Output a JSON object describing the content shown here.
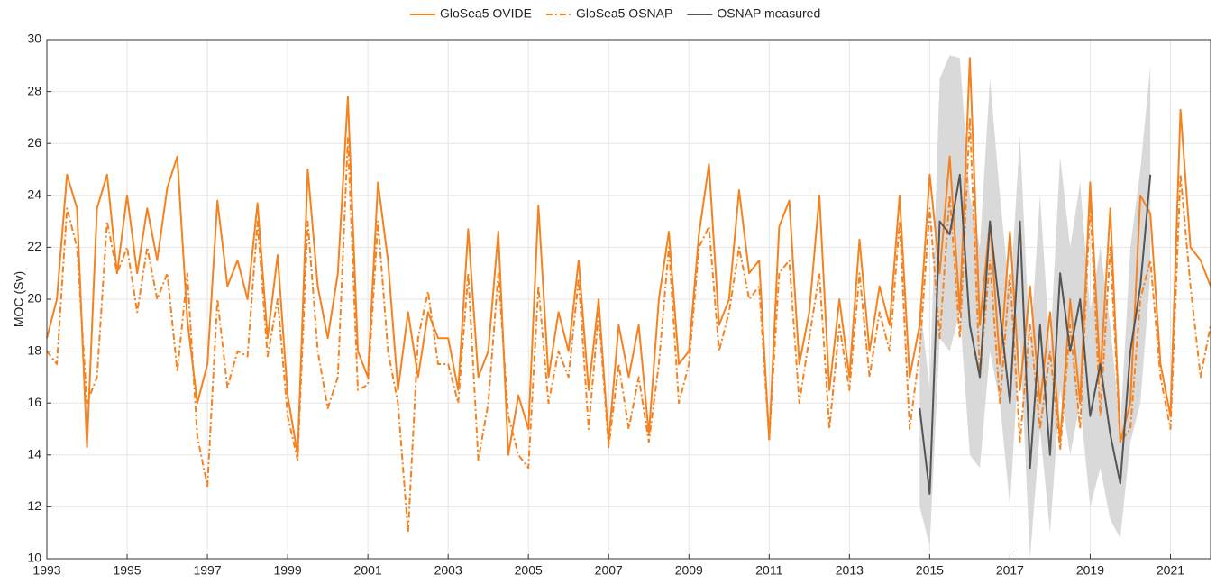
{
  "chart_data": {
    "type": "line",
    "y_label": "MOC (Sv)",
    "xlim": [
      1993,
      2022
    ],
    "xticks": [
      1993,
      1995,
      1997,
      1999,
      2001,
      2003,
      2005,
      2007,
      2009,
      2011,
      2013,
      2015,
      2017,
      2019,
      2021
    ],
    "ylim": [
      10,
      30
    ],
    "yticks": [
      10,
      12,
      14,
      16,
      18,
      20,
      22,
      24,
      26,
      28,
      30
    ],
    "grid": true,
    "legend": "top",
    "x": [
      1993,
      1993.25,
      1993.5,
      1993.75,
      1994,
      1994.25,
      1994.5,
      1994.75,
      1995,
      1995.25,
      1995.5,
      1995.75,
      1996,
      1996.25,
      1996.5,
      1996.75,
      1997,
      1997.25,
      1997.5,
      1997.75,
      1998,
      1998.25,
      1998.5,
      1998.75,
      1999,
      1999.25,
      1999.5,
      1999.75,
      2000,
      2000.25,
      2000.5,
      2000.75,
      2001,
      2001.25,
      2001.5,
      2001.75,
      2002,
      2002.25,
      2002.5,
      2002.75,
      2003,
      2003.25,
      2003.5,
      2003.75,
      2004,
      2004.25,
      2004.5,
      2004.75,
      2005,
      2005.25,
      2005.5,
      2005.75,
      2006,
      2006.25,
      2006.5,
      2006.75,
      2007,
      2007.25,
      2007.5,
      2007.75,
      2008,
      2008.25,
      2008.5,
      2008.75,
      2009,
      2009.25,
      2009.5,
      2009.75,
      2010,
      2010.25,
      2010.5,
      2010.75,
      2011,
      2011.25,
      2011.5,
      2011.75,
      2012,
      2012.25,
      2012.5,
      2012.75,
      2013,
      2013.25,
      2013.5,
      2013.75,
      2014,
      2014.25,
      2014.5,
      2014.75,
      2015,
      2015.25,
      2015.5,
      2015.75,
      2016,
      2016.25,
      2016.5,
      2016.75,
      2017,
      2017.25,
      2017.5,
      2017.75,
      2018,
      2018.25,
      2018.5,
      2018.75,
      2019,
      2019.25,
      2019.5,
      2019.75,
      2020,
      2020.25,
      2020.5,
      2020.75,
      2021,
      2021.25,
      2021.5,
      2021.75,
      2022
    ],
    "series": [
      {
        "name": "GloSea5 OVIDE",
        "color": "#f5821f",
        "line_style": "solid",
        "values": [
          18.5,
          20,
          24.8,
          23.5,
          14.3,
          23.5,
          24.8,
          21,
          24,
          21,
          23.5,
          21.5,
          24.3,
          25.5,
          19.2,
          16,
          17.5,
          23.8,
          20.5,
          21.5,
          20,
          23.7,
          18.5,
          21.7,
          16.3,
          14,
          25,
          20.5,
          18.5,
          21,
          27.8,
          18,
          17,
          24.5,
          21.5,
          16.5,
          19.5,
          17,
          19.5,
          18.5,
          18.5,
          16.5,
          22.7,
          17,
          18,
          22.6,
          14,
          16.3,
          15,
          23.6,
          17,
          19.5,
          18,
          21.5,
          16.5,
          20,
          14.5,
          19,
          17,
          19,
          14.8,
          20,
          22.6,
          17.5,
          18,
          22.5,
          25.2,
          19,
          20,
          24.2,
          21,
          21.5,
          14.6,
          22.8,
          23.8,
          17.5,
          19.5,
          24,
          16.5,
          20,
          17,
          22.3,
          18,
          20.5,
          19,
          24,
          17,
          19,
          24.8,
          21,
          25.5,
          19.5,
          29.3,
          19,
          23,
          17.5,
          22.6,
          16.5,
          20.5,
          16,
          19.5,
          14.5,
          20,
          16,
          24.5,
          17,
          23.5,
          14.5,
          16,
          24,
          23.3,
          17.5,
          15.5,
          27.3,
          22,
          21.5,
          20.5
        ]
      },
      {
        "name": "GloSea5 OSNAP",
        "color": "#f5821f",
        "line_style": "dash-dot",
        "values": [
          18,
          17.5,
          23.5,
          22,
          16,
          17,
          23,
          21,
          22,
          19.5,
          22,
          20,
          21,
          17.2,
          21,
          14.7,
          12.8,
          20,
          16.6,
          18,
          17.8,
          23,
          17.8,
          20,
          15.5,
          13.8,
          23,
          18,
          15.8,
          17,
          26.2,
          16.5,
          16.7,
          23,
          18,
          16,
          11,
          18.5,
          20.3,
          17.5,
          17.5,
          16,
          21,
          13.8,
          16,
          21,
          15.5,
          14,
          13.5,
          20.5,
          16,
          18,
          17,
          20.8,
          15,
          19.5,
          14.3,
          17.5,
          15,
          17,
          14.5,
          17.5,
          22,
          16,
          17.5,
          22,
          22.8,
          18,
          19.5,
          22,
          20,
          20.5,
          14.6,
          21,
          21.5,
          16,
          18.5,
          21,
          15,
          19,
          16.5,
          21,
          17,
          19.5,
          18,
          23,
          15,
          18,
          23.5,
          18.5,
          24,
          18.5,
          27,
          17,
          21.5,
          16,
          21,
          14.5,
          19,
          15,
          18,
          14.2,
          19,
          15,
          23.8,
          15.5,
          22,
          14.5,
          15,
          20,
          21.5,
          17,
          15,
          24.8,
          20.5,
          17,
          19
        ]
      },
      {
        "name": "OSNAP measured",
        "color": "#555555",
        "line_style": "solid",
        "band_color": "#d9d9d9",
        "x": [
          2014.75,
          2015,
          2015.25,
          2015.5,
          2015.75,
          2016,
          2016.25,
          2016.5,
          2016.75,
          2017,
          2017.25,
          2017.5,
          2017.75,
          2018,
          2018.25,
          2018.5,
          2018.75,
          2019,
          2019.25,
          2019.5,
          2019.75,
          2020,
          2020.25,
          2020.5
        ],
        "values": [
          15.8,
          12.5,
          23,
          22.5,
          24.8,
          19,
          17,
          23,
          19.5,
          16,
          23,
          13.5,
          19,
          14,
          21,
          18,
          20,
          15.5,
          17.5,
          14.8,
          12.9,
          18,
          20.5,
          24.8
        ],
        "lower": [
          12,
          10.5,
          18.5,
          18,
          19.5,
          14,
          13.5,
          18,
          16,
          12,
          18.5,
          10,
          15,
          11,
          16.5,
          14,
          16,
          12,
          13.5,
          11.5,
          10.8,
          14.5,
          16,
          21
        ],
        "upper": [
          20,
          16.5,
          28.5,
          29.4,
          29.3,
          24,
          22,
          28.5,
          24,
          20,
          26.3,
          18,
          24,
          18,
          25.5,
          22,
          24.5,
          19.5,
          22,
          19,
          15,
          22,
          25,
          29
        ]
      }
    ]
  }
}
